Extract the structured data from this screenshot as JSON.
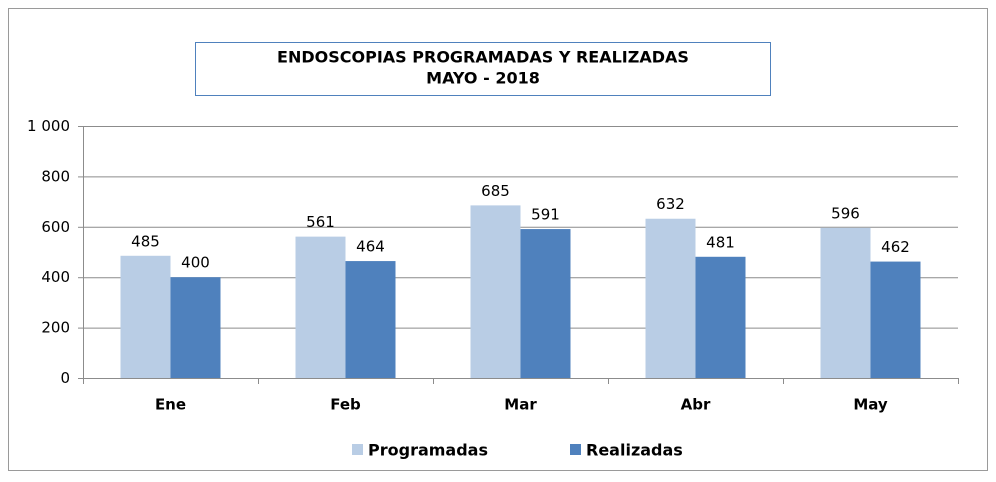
{
  "chart_data": {
    "type": "bar",
    "title": "ENDOSCOPIAS PROGRAMADAS Y REALIZADAS",
    "subtitle": "MAYO - 2018",
    "categories": [
      "Ene",
      "Feb",
      "Mar",
      "Abr",
      "May"
    ],
    "series": [
      {
        "name": "Programadas",
        "color": "#b9cde5",
        "values": [
          485,
          561,
          685,
          632,
          596
        ]
      },
      {
        "name": "Realizadas",
        "color": "#4f81bd",
        "values": [
          400,
          464,
          591,
          481,
          462
        ]
      }
    ],
    "ylim": [
      0,
      1000
    ],
    "yticks": [
      0,
      200,
      400,
      600,
      800,
      {
        "value": 1000,
        "label": "1 000"
      }
    ],
    "grid": true,
    "legend": "bottom"
  }
}
